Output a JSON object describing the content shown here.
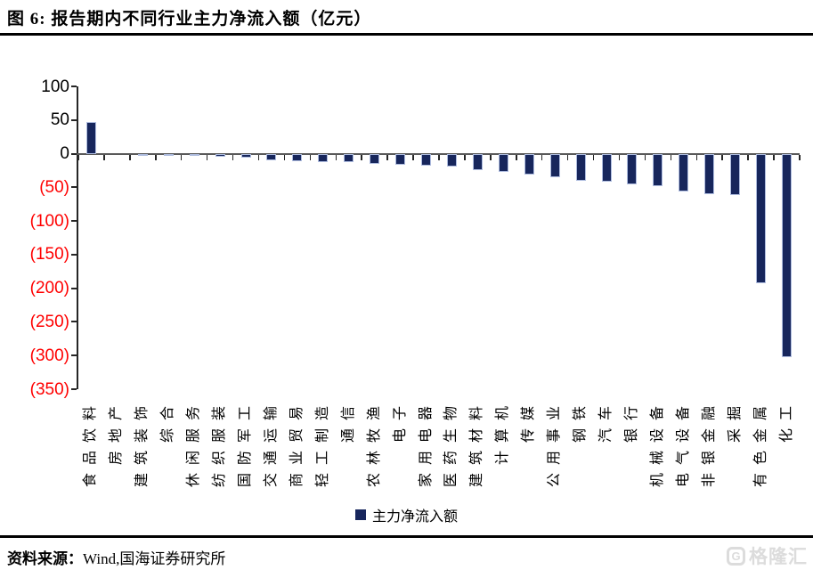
{
  "title": "图 6:  报告期内不同行业主力净流入额（亿元）",
  "legend": {
    "label": "主力净流入额",
    "color": "#17265c"
  },
  "footer": {
    "source_label": "资料来源：",
    "source_text": "Wind,国海证券研究所"
  },
  "watermark": {
    "icon": "G",
    "text": "格隆汇"
  },
  "chart_data": {
    "type": "bar",
    "title": "报告期内不同行业主力净流入额（亿元）",
    "unit": "亿元",
    "series_name": "主力净流入额",
    "categories": [
      "食品饮料",
      "房地产",
      "建筑装饰",
      "综合",
      "休闲服务",
      "纺织服装",
      "国防军工",
      "交通运输",
      "商业贸易",
      "轻工制造",
      "通信",
      "农林牧渔",
      "电子",
      "家用电器",
      "医药生物",
      "建筑材料",
      "计算机",
      "传媒",
      "公用事业",
      "钢铁",
      "汽车",
      "银行",
      "机械设备",
      "电气设备",
      "非银金融",
      "采掘",
      "有色金属",
      "化工"
    ],
    "values": [
      47,
      0,
      -1,
      -2,
      -3,
      -4,
      -6,
      -10,
      -11,
      -12,
      -13,
      -15,
      -16,
      -18,
      -19,
      -25,
      -27,
      -31,
      -35,
      -40,
      -42,
      -45,
      -48,
      -56,
      -60,
      -62,
      -192,
      -302
    ],
    "ylim": [
      -350,
      100
    ],
    "yticks": [
      100,
      50,
      0,
      -50,
      -100,
      -150,
      -200,
      -250,
      -300,
      -350
    ],
    "ytick_negative_format": "parentheses",
    "bar_color": "#17265c",
    "bar_border_color": "#aebcdf",
    "negative_label_color": "#ff0000",
    "positive_label_color": "#000000",
    "grid": false,
    "legend_position": "bottom"
  }
}
